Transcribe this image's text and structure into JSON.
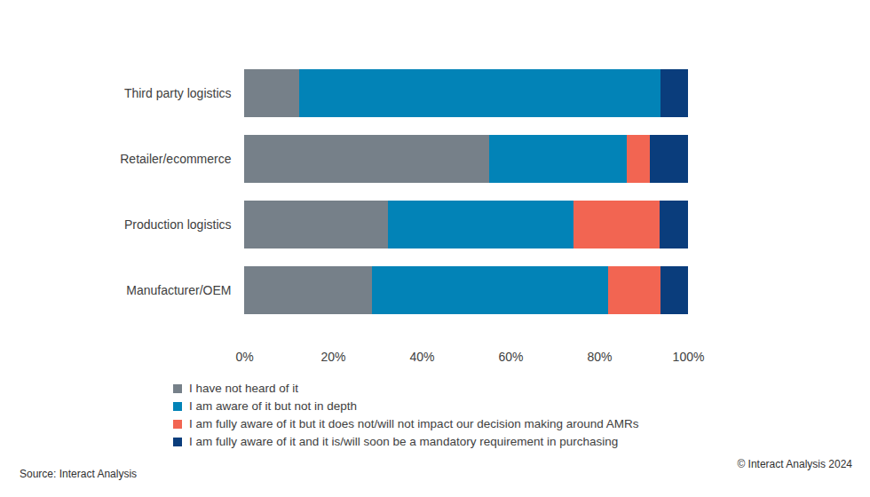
{
  "chart_data": {
    "type": "bar",
    "orientation": "horizontal",
    "stacked": true,
    "grid": false,
    "legend": "bottom",
    "categories": [
      "Third party logistics",
      "Retailer/ecommerce",
      "Production logistics",
      "Manufacturer/OEM"
    ],
    "series": [
      {
        "name": "I have not heard of it",
        "color": "#768089",
        "values": [
          12.4,
          55.2,
          32.4,
          28.8
        ]
      },
      {
        "name": "I am aware of it but not in depth",
        "color": "#0283b7",
        "values": [
          81.4,
          31.0,
          41.8,
          53.2
        ]
      },
      {
        "name": "I am fully aware of it but it does not/will not impact our decision making around AMRs",
        "color": "#f26552",
        "values": [
          0,
          5.2,
          19.4,
          11.8
        ]
      },
      {
        "name": "I am fully aware of it and it is/will soon be a mandatory requirement in purchasing",
        "color": "#0a3d7c",
        "values": [
          6.2,
          8.6,
          6.4,
          6.2
        ]
      }
    ],
    "xlim": [
      0,
      100
    ],
    "xticks": [
      {
        "value": 0,
        "label": "0%"
      },
      {
        "value": 20,
        "label": "20%"
      },
      {
        "value": 40,
        "label": "40%"
      },
      {
        "value": 60,
        "label": "60%"
      },
      {
        "value": 80,
        "label": "80%"
      },
      {
        "value": 100,
        "label": "100%"
      }
    ],
    "source": "Source: Interact Analysis",
    "copyright": "© Interact Analysis 2024"
  }
}
